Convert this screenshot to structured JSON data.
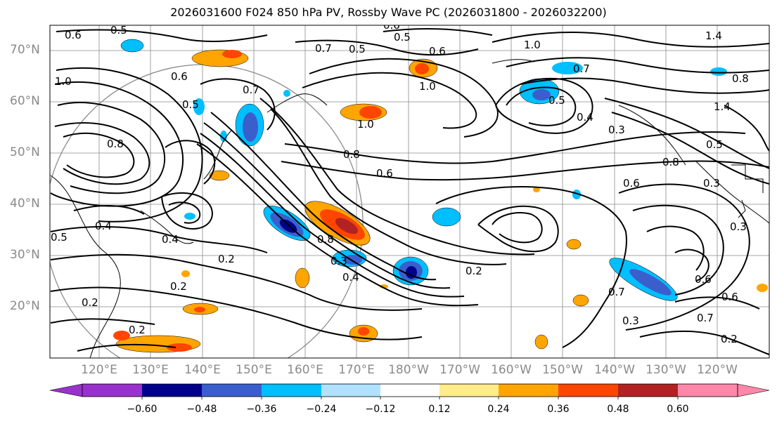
{
  "title": "2026031600 F024 850 hPa PV, Rossby Wave PC (2026031800 - 2026032200)",
  "latitude_labels": [
    "70°N",
    "60°N",
    "50°N",
    "40°N",
    "30°N",
    "20°N"
  ],
  "longitude_labels": [
    "120°E",
    "130°E",
    "140°E",
    "150°E",
    "160°E",
    "170°E",
    "180°W",
    "170°W",
    "160°W",
    "150°W",
    "140°W",
    "130°W",
    "120°W"
  ],
  "colorbar": {
    "ticks": [
      "−0.60",
      "−0.48",
      "−0.36",
      "−0.24",
      "−0.12",
      "0.12",
      "0.24",
      "0.36",
      "0.48",
      "0.60"
    ],
    "colors": [
      "#9932cc",
      "#00008b",
      "#3a5fcd",
      "#00bfff",
      "#b0e2ff",
      "#ffffff",
      "#ffec8b",
      "#ffa500",
      "#ff4500",
      "#b22222",
      "#ff88aa"
    ]
  },
  "contour_labels": [
    "0.6",
    "0.5",
    "0.6",
    "0.5",
    "0.7",
    "0.5",
    "0.6",
    "1.0",
    "1.4",
    "0.7",
    "0.8",
    "1.0",
    "0.6",
    "0.5",
    "0.7",
    "1.0",
    "1.0",
    "0.5",
    "0.4",
    "0.3",
    "0.5",
    "1.4",
    "0.8",
    "0.8",
    "0.6",
    "0.8",
    "0.6",
    "0.3",
    "0.4",
    "0.5",
    "0.4",
    "0.2",
    "0.2",
    "0.8",
    "0.3",
    "0.4",
    "0.2",
    "0.6",
    "0.7",
    "0.6",
    "0.7",
    "0.3",
    "0.2",
    "0.2",
    "0.2",
    "0.3"
  ]
}
